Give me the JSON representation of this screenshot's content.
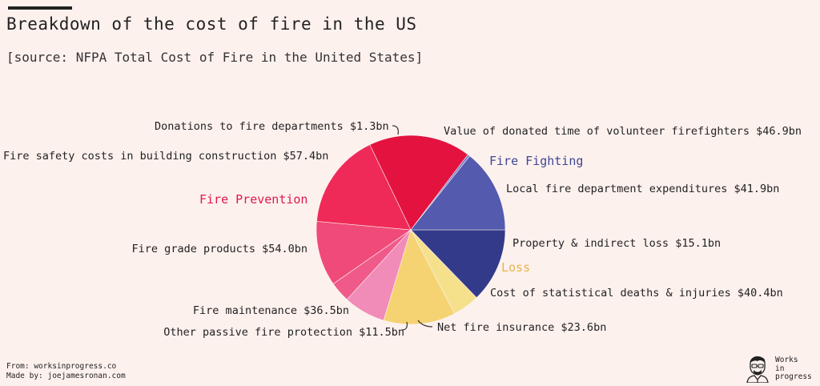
{
  "header": {
    "title": "Breakdown of the cost of fire in the US",
    "subtitle": "[source: NFPA Total Cost of Fire in the United States]"
  },
  "footer": {
    "from": "From: worksinprogress.co",
    "made_by": "Made by: joejamesronan.com"
  },
  "brand": {
    "line1": "Works",
    "line2": "in",
    "line3": "progress",
    "icon": "author-face-icon"
  },
  "colors": {
    "background": "#fdf1ee",
    "fire_fighting": "#3f4694",
    "fire_prevention": "#e0174a",
    "loss": "#e7b44a"
  },
  "chart_data": {
    "type": "pie",
    "unit": "$bn",
    "groups": [
      {
        "name": "Fire Fighting",
        "color": "#3f4694"
      },
      {
        "name": "Fire Prevention",
        "color": "#e0174a"
      },
      {
        "name": "Loss",
        "color": "#e7b44a"
      }
    ],
    "slices": [
      {
        "label": "Local fire department expenditures $41.9bn",
        "value": 41.9,
        "group": "Fire Fighting",
        "color": "#343a8a"
      },
      {
        "label": "Property & indirect loss $15.1bn",
        "value": 15.1,
        "group": "Loss",
        "color": "#f5e08c"
      },
      {
        "label": "Cost of statistical deaths & injuries $40.4bn",
        "value": 40.4,
        "group": "Loss",
        "color": "#f5d372"
      },
      {
        "label": "Net fire insurance $23.6bn",
        "value": 23.6,
        "group": "Fire Prevention",
        "color": "#f18cb8"
      },
      {
        "label": "Other passive fire protection $11.5bn",
        "value": 11.5,
        "group": "Fire Prevention",
        "color": "#f05a8a"
      },
      {
        "label": "Fire maintenance $36.5bn",
        "value": 36.5,
        "group": "Fire Prevention",
        "color": "#f04a78"
      },
      {
        "label": "Fire grade products $54.0bn",
        "value": 54.0,
        "group": "Fire Prevention",
        "color": "#f02a58"
      },
      {
        "label": "Fire safety costs in building construction $57.4bn",
        "value": 57.4,
        "group": "Fire Prevention",
        "color": "#e3123e"
      },
      {
        "label": "Donations to fire departments $1.3bn",
        "value": 1.3,
        "group": "Fire Fighting",
        "color": "#7a7fd0"
      },
      {
        "label": "Value of donated time of volunteer firefighters $46.9bn",
        "value": 46.9,
        "group": "Fire Fighting",
        "color": "#545aae"
      }
    ]
  }
}
